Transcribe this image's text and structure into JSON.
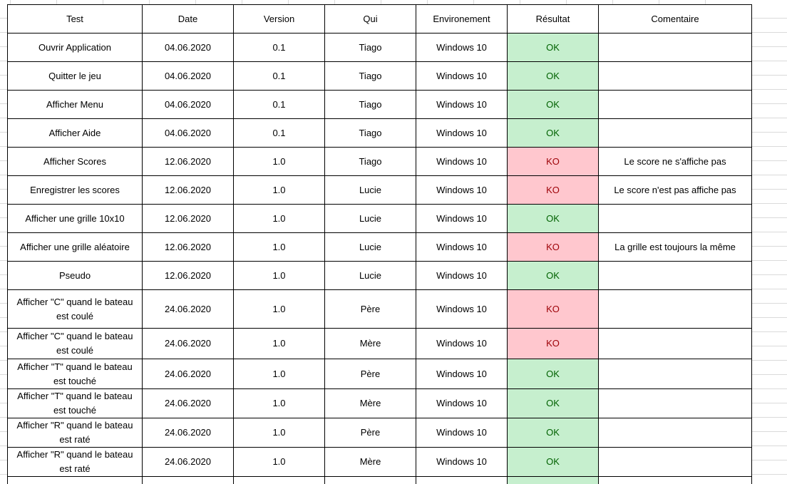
{
  "columns": [
    "Test",
    "Date",
    "Version",
    "Qui",
    "Environement",
    "Résultat",
    "Comentaire"
  ],
  "rows": [
    {
      "test": "Ouvrir Application",
      "date": "04.06.2020",
      "version": "0.1",
      "qui": "Tiago",
      "env": "Windows 10",
      "result": "OK",
      "comment": ""
    },
    {
      "test": "Quitter le jeu",
      "date": "04.06.2020",
      "version": "0.1",
      "qui": "Tiago",
      "env": "Windows 10",
      "result": "OK",
      "comment": ""
    },
    {
      "test": "Afficher Menu",
      "date": "04.06.2020",
      "version": "0.1",
      "qui": "Tiago",
      "env": "Windows 10",
      "result": "OK",
      "comment": ""
    },
    {
      "test": "Afficher Aide",
      "date": "04.06.2020",
      "version": "0.1",
      "qui": "Tiago",
      "env": "Windows 10",
      "result": "OK",
      "comment": ""
    },
    {
      "test": "Afficher Scores",
      "date": "12.06.2020",
      "version": "1.0",
      "qui": "Tiago",
      "env": "Windows 10",
      "result": "KO",
      "comment": "Le score ne s'affiche pas"
    },
    {
      "test": "Enregistrer les scores",
      "date": "12.06.2020",
      "version": "1.0",
      "qui": "Lucie",
      "env": "Windows 10",
      "result": "KO",
      "comment": "Le score n'est pas affiche pas"
    },
    {
      "test": "Afficher une grille 10x10",
      "date": "12.06.2020",
      "version": "1.0",
      "qui": "Lucie",
      "env": "Windows 10",
      "result": "OK",
      "comment": ""
    },
    {
      "test": "Afficher une grille aléatoire",
      "date": "12.06.2020",
      "version": "1.0",
      "qui": "Lucie",
      "env": "Windows 10",
      "result": "KO",
      "comment": "La grille est toujours la même"
    },
    {
      "test": "Pseudo",
      "date": "12.06.2020",
      "version": "1.0",
      "qui": "Lucie",
      "env": "Windows 10",
      "result": "OK",
      "comment": ""
    },
    {
      "test": "Afficher \"C\" quand le bateau est coulé",
      "date": "24.06.2020",
      "version": "1.0",
      "qui": "Père",
      "env": "Windows 10",
      "result": "KO",
      "comment": ""
    },
    {
      "test": "Afficher \"C\" quand le bateau est coulé",
      "date": "24.06.2020",
      "version": "1.0",
      "qui": "Mère",
      "env": "Windows 10",
      "result": "KO",
      "comment": ""
    },
    {
      "test": "Afficher \"T\" quand le bateau est touché",
      "date": "24.06.2020",
      "version": "1.0",
      "qui": "Père",
      "env": "Windows 10",
      "result": "OK",
      "comment": ""
    },
    {
      "test": "Afficher \"T\" quand le bateau est touché",
      "date": "24.06.2020",
      "version": "1.0",
      "qui": "Mère",
      "env": "Windows 10",
      "result": "OK",
      "comment": ""
    },
    {
      "test": "Afficher \"R\" quand le bateau est raté",
      "date": "24.06.2020",
      "version": "1.0",
      "qui": "Père",
      "env": "Windows 10",
      "result": "OK",
      "comment": ""
    },
    {
      "test": "Afficher \"R\" quand le bateau est raté",
      "date": "24.06.2020",
      "version": "1.0",
      "qui": "Mère",
      "env": "Windows 10",
      "result": "OK",
      "comment": ""
    }
  ],
  "colors": {
    "ok_fill": "#c6efce",
    "ok_text": "#006100",
    "ko_fill": "#ffc7ce",
    "ko_text": "#9c0006",
    "gridline": "#dadada",
    "border": "#000000"
  }
}
